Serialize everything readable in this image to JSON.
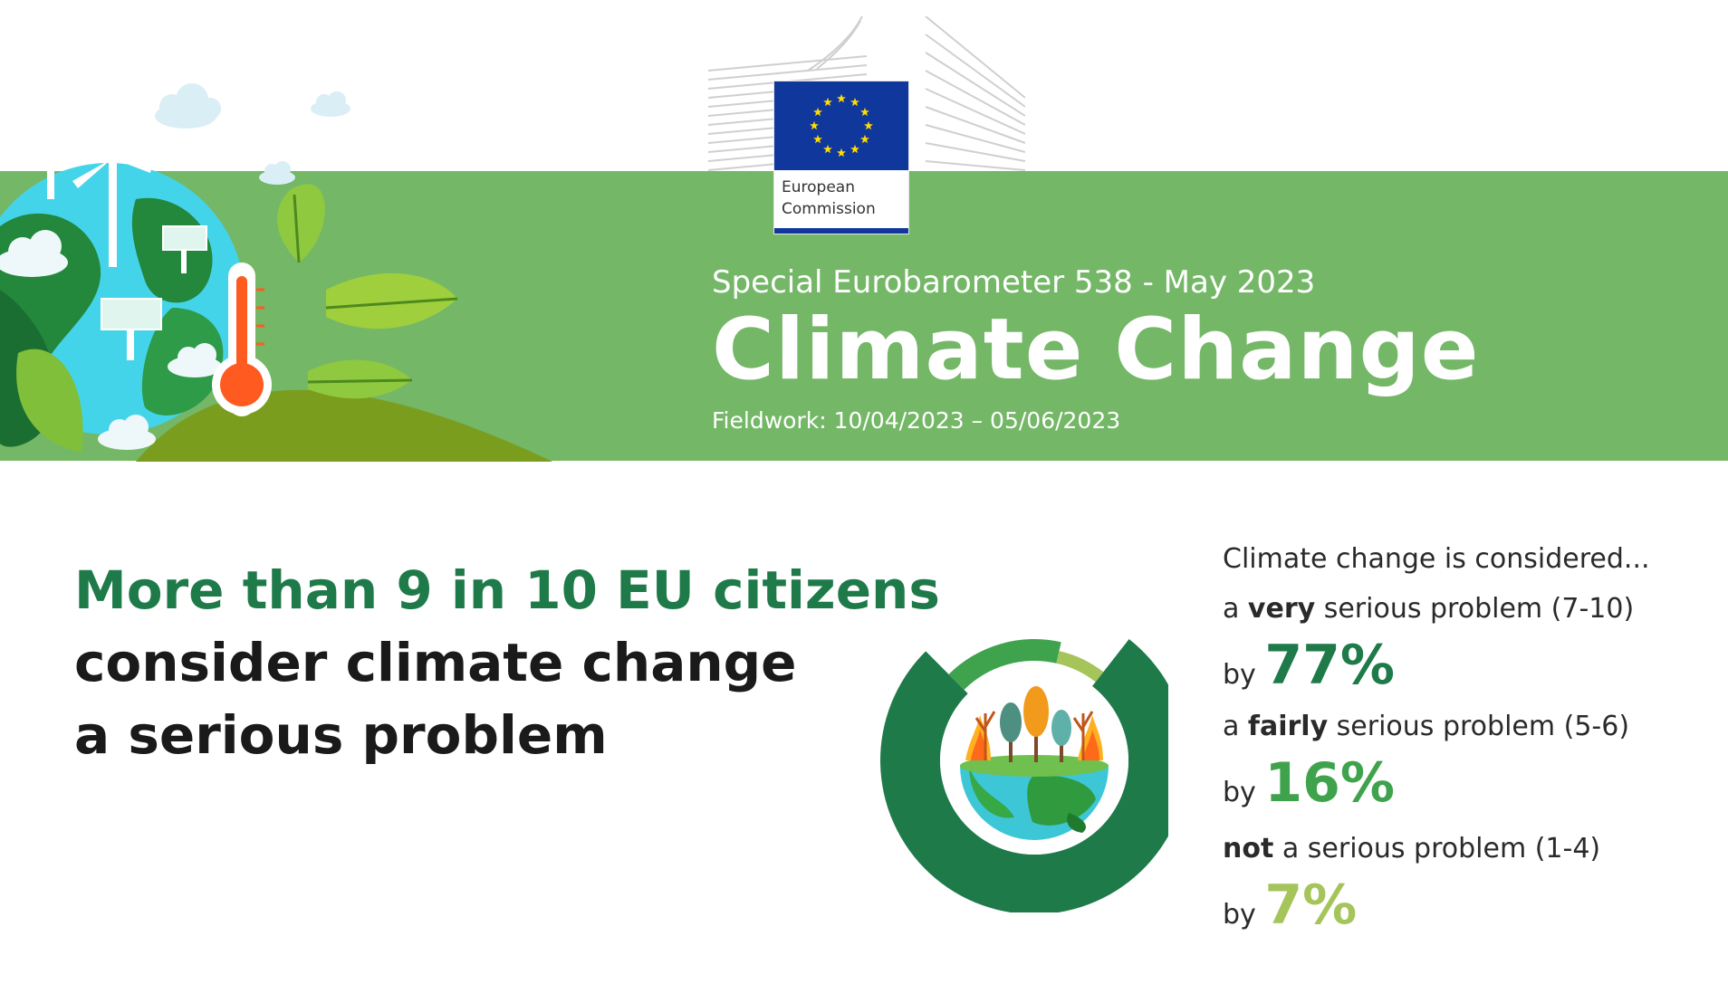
{
  "header": {
    "org_name_line1": "European",
    "org_name_line2": "Commission",
    "subtitle": "Special Eurobarometer 538 - May 2023",
    "title": "Climate Change",
    "fieldwork": "Fieldwork: 10/04/2023 – 05/06/2023"
  },
  "headline": {
    "line1": "More than 9 in 10 EU citizens",
    "line2": "consider climate change",
    "line3": "a serious problem"
  },
  "legend": {
    "intro": "Climate change is considered...",
    "items": [
      {
        "prefix": "a ",
        "emph": "very",
        "rest": " serious problem (7-10)",
        "by": "by",
        "pct": "77%"
      },
      {
        "prefix": "a ",
        "emph": "fairly",
        "rest": " serious problem (5-6)",
        "by": "by",
        "pct": "16%"
      },
      {
        "prefix": "",
        "emph": "not",
        "rest": " a serious problem (1-4)",
        "by": "by",
        "pct": "7%"
      }
    ]
  },
  "colors": {
    "banner_green": "#74b767",
    "very": "#1f7a4a",
    "fairly": "#3fa34d",
    "not": "#a5c45a",
    "eu_blue": "#10379b",
    "eu_star": "#ffdd00"
  },
  "icons": [
    "eu-flag-icon",
    "ec-building-icon",
    "globe-icon",
    "wind-turbine-icon",
    "solar-panel-icon",
    "thermometer-icon",
    "leaf-icon",
    "cloud-icon",
    "burning-earth-icon"
  ],
  "chart_data": {
    "type": "pie",
    "variant": "donut",
    "title": "",
    "categories": [
      "a very serious problem (7-10)",
      "a fairly serious problem (5-6)",
      "not a serious problem (1-4)"
    ],
    "values": [
      77,
      16,
      7
    ],
    "unit": "%",
    "colors": [
      "#1f7a4a",
      "#3fa34d",
      "#a5c45a"
    ]
  }
}
